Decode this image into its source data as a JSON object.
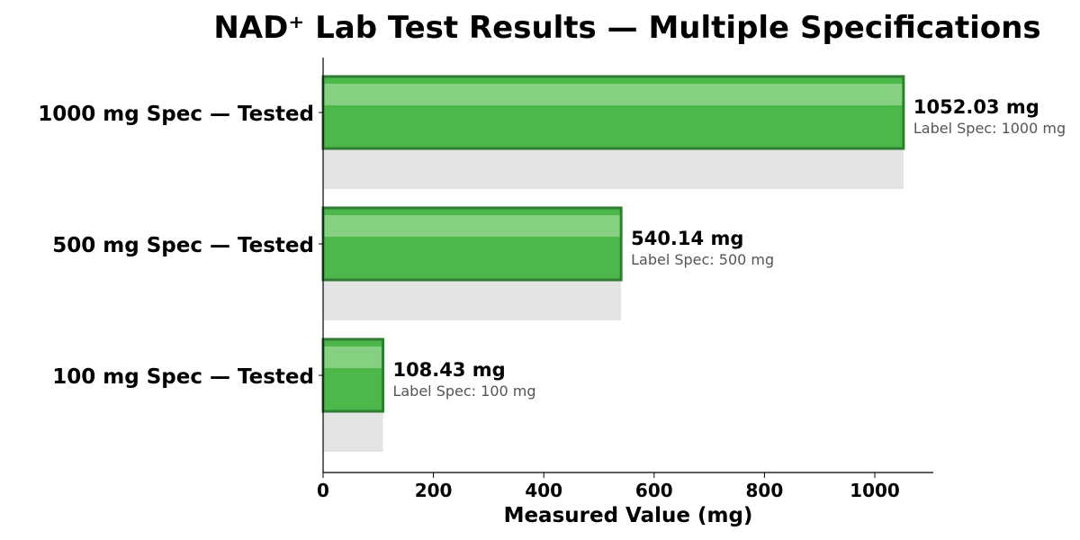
{
  "chart_data": {
    "type": "bar",
    "orientation": "horizontal",
    "title": "NAD⁺ Lab Test Results — Multiple Specifications",
    "xlabel": "Measured Value (mg)",
    "ylabel": "",
    "xlim": [
      0,
      1100
    ],
    "xticks": [
      0,
      200,
      400,
      600,
      800,
      1000
    ],
    "categories": [
      "1000 mg Spec — Tested",
      "500 mg Spec — Tested",
      "100 mg Spec — Tested"
    ],
    "values": [
      1052.03,
      540.14,
      108.43
    ],
    "value_labels": [
      "1052.03 mg",
      "540.14 mg",
      "108.43 mg"
    ],
    "spec_labels": [
      "Label Spec: 1000 mg",
      "Label Spec: 500 mg",
      "Label Spec: 100 mg"
    ],
    "grid": false,
    "colors": {
      "bar_fill": "#4db84a",
      "bar_edge": "#2e7d32",
      "highlight": "#85d081",
      "shadow": "#e4e4e4",
      "spec_text": "#555555"
    }
  }
}
